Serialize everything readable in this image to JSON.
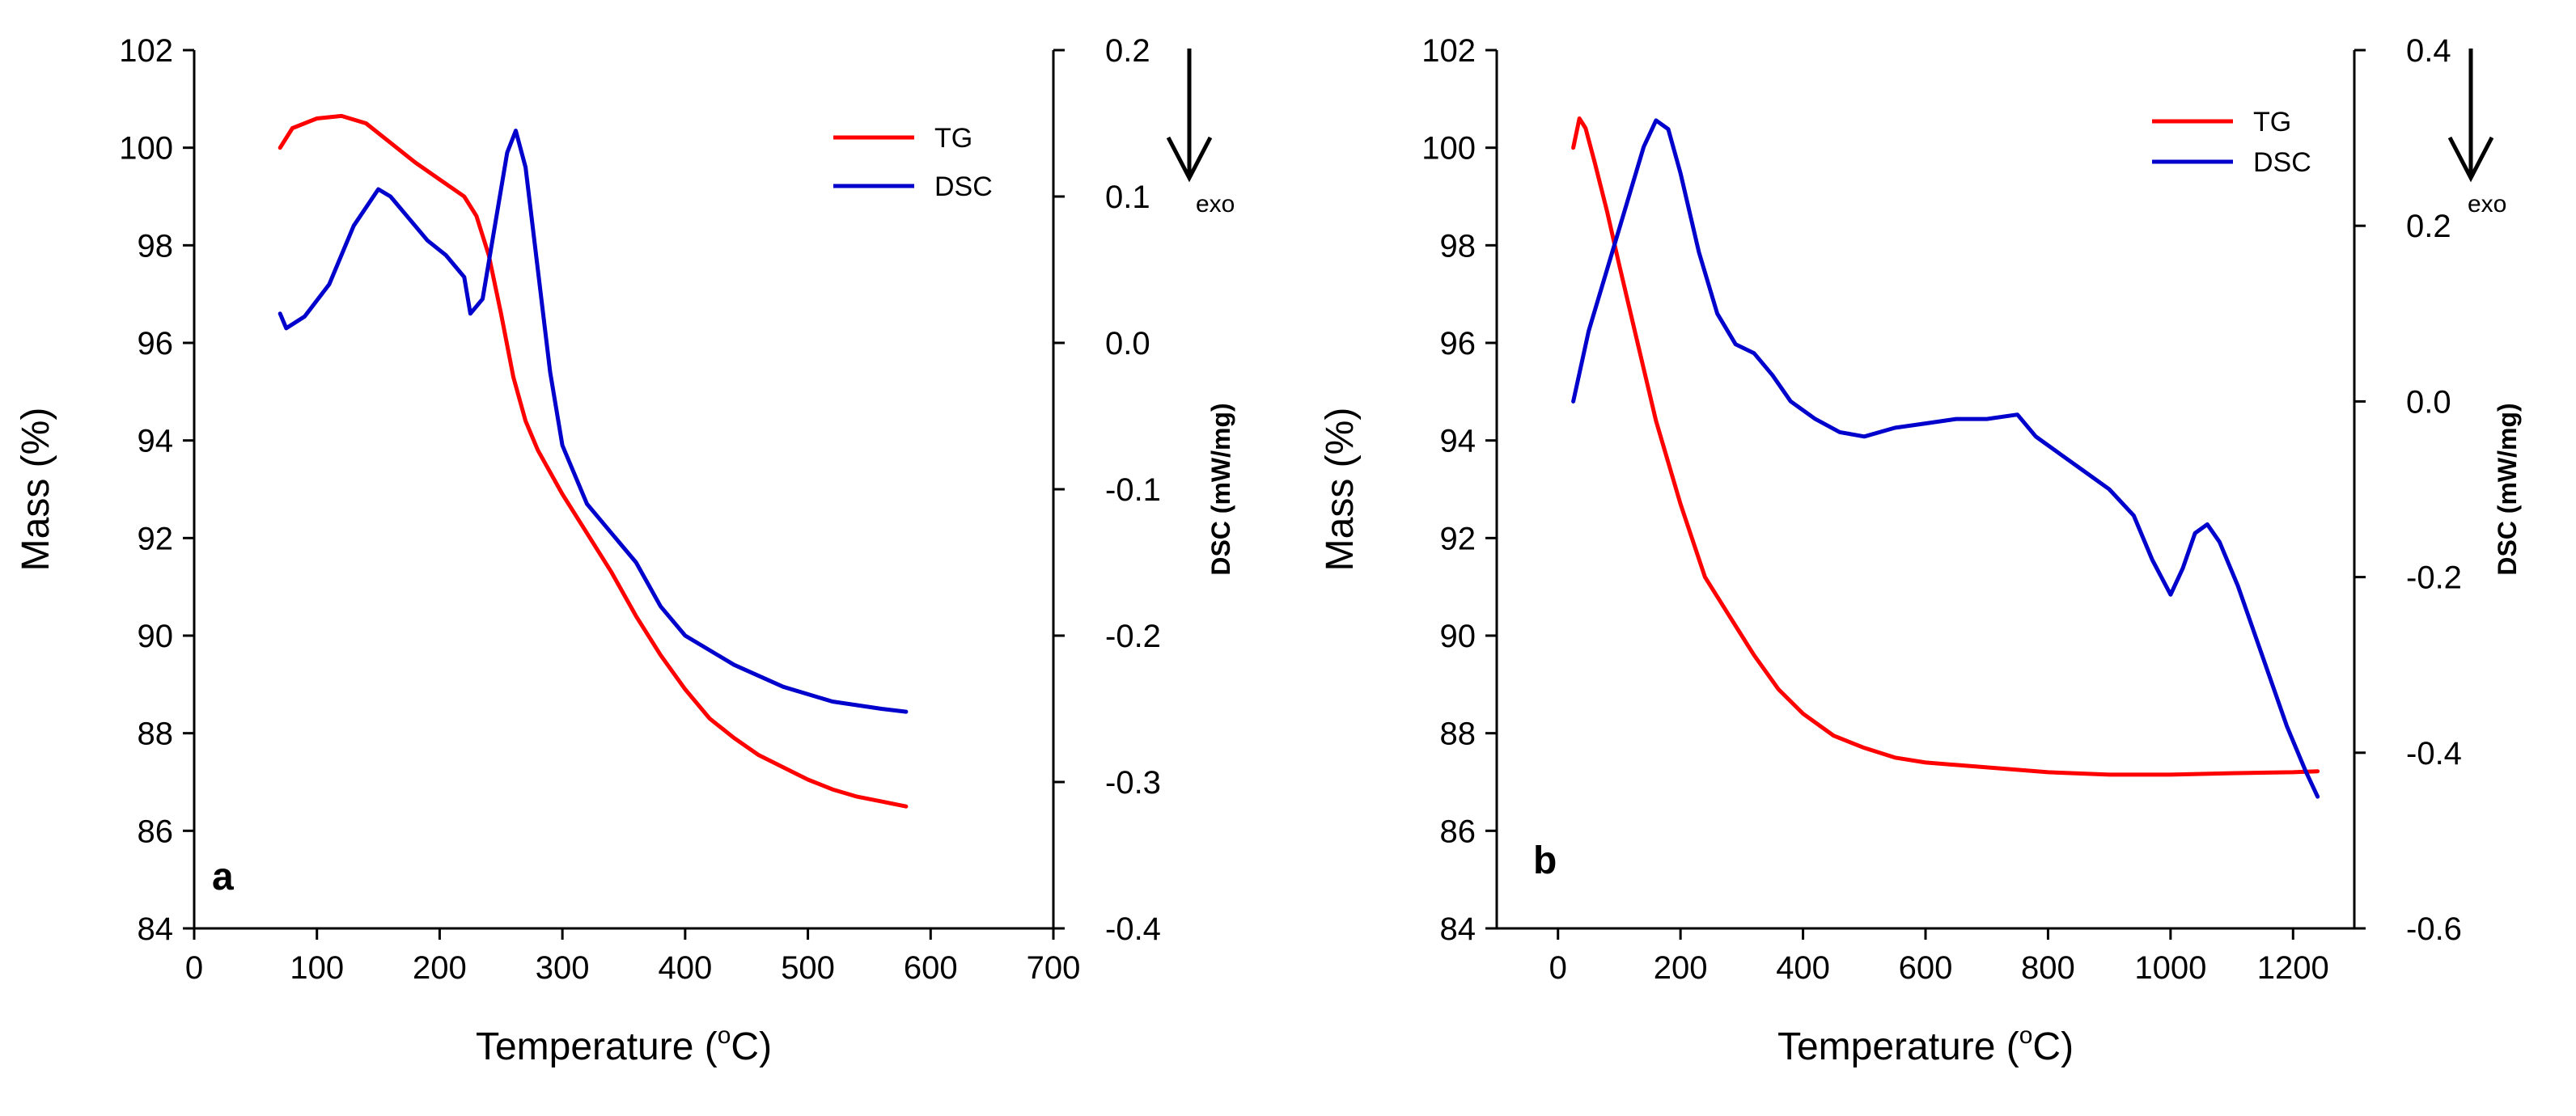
{
  "chart_data": [
    {
      "type": "line",
      "panel_label": "a",
      "xlabel_prefix": "Temperature (",
      "xlabel_sup": "o",
      "xlabel_suffix": "C)",
      "ylabel": "Mass (%)",
      "y2label": "DSC (mW/mg)",
      "exo_label": "exo",
      "xlim": [
        0,
        700
      ],
      "ylim": [
        84,
        102
      ],
      "y2lim": [
        -0.4,
        0.2
      ],
      "x_ticks": [
        0,
        100,
        200,
        300,
        400,
        500,
        600,
        700
      ],
      "x_tick_labels": [
        "0",
        "100",
        "200",
        "300",
        "400",
        "500",
        "600",
        "700"
      ],
      "y_ticks": [
        84,
        86,
        88,
        90,
        92,
        94,
        96,
        98,
        100,
        102
      ],
      "y_tick_labels": [
        "84",
        "86",
        "88",
        "90",
        "92",
        "94",
        "96",
        "98",
        "100",
        "102"
      ],
      "y2_ticks": [
        -0.4,
        -0.3,
        -0.2,
        -0.1,
        0.0,
        0.1,
        0.2
      ],
      "y2_tick_labels": [
        "-0.4",
        "-0.3",
        "-0.2",
        "-0.1",
        "0.0",
        "0.1",
        "0.2"
      ],
      "legend_position": "top-right",
      "series": [
        {
          "name": "TG",
          "color": "#ff0000",
          "axis": "left",
          "x": [
            70,
            80,
            100,
            120,
            140,
            160,
            180,
            200,
            220,
            230,
            240,
            250,
            260,
            270,
            280,
            300,
            320,
            340,
            360,
            380,
            400,
            420,
            440,
            460,
            480,
            500,
            520,
            540,
            560,
            580
          ],
          "y": [
            100.0,
            100.4,
            100.6,
            100.65,
            100.5,
            100.1,
            99.7,
            99.35,
            99.0,
            98.6,
            97.8,
            96.6,
            95.3,
            94.4,
            93.8,
            92.9,
            92.1,
            91.3,
            90.4,
            89.6,
            88.9,
            88.3,
            87.9,
            87.55,
            87.3,
            87.05,
            86.85,
            86.7,
            86.6,
            86.5
          ]
        },
        {
          "name": "DSC",
          "color": "#0000cc",
          "axis": "right",
          "x": [
            70,
            75,
            90,
            110,
            130,
            150,
            160,
            175,
            190,
            205,
            220,
            225,
            235,
            245,
            255,
            262,
            270,
            280,
            290,
            300,
            320,
            340,
            360,
            380,
            400,
            440,
            480,
            520,
            560,
            580
          ],
          "y": [
            0.02,
            0.01,
            0.018,
            0.04,
            0.08,
            0.105,
            0.1,
            0.085,
            0.07,
            0.06,
            0.045,
            0.02,
            0.03,
            0.08,
            0.13,
            0.145,
            0.12,
            0.05,
            -0.02,
            -0.07,
            -0.11,
            -0.13,
            -0.15,
            -0.18,
            -0.2,
            -0.22,
            -0.235,
            -0.245,
            -0.25,
            -0.252
          ]
        }
      ]
    },
    {
      "type": "line",
      "panel_label": "b",
      "xlabel_prefix": "Temperature (",
      "xlabel_sup": "o",
      "xlabel_suffix": "C)",
      "ylabel": "Mass (%)",
      "y2label": "DSC (mW/mg)",
      "exo_label": "exo",
      "xlim": [
        -100,
        1300
      ],
      "ylim": [
        84,
        102
      ],
      "y2lim": [
        -0.6,
        0.4
      ],
      "x_ticks": [
        0,
        200,
        400,
        600,
        800,
        1000,
        1200
      ],
      "x_tick_labels": [
        "0",
        "200",
        "400",
        "600",
        "800",
        "1000",
        "1200"
      ],
      "y_ticks": [
        84,
        86,
        88,
        90,
        92,
        94,
        96,
        98,
        100,
        102
      ],
      "y_tick_labels": [
        "84",
        "86",
        "88",
        "90",
        "92",
        "94",
        "96",
        "98",
        "100",
        "102"
      ],
      "y2_ticks": [
        -0.6,
        -0.4,
        -0.2,
        0.0,
        0.2,
        0.4
      ],
      "y2_tick_labels": [
        "-0.6",
        "-0.4",
        "-0.2",
        "0.0",
        "0.2",
        "0.4"
      ],
      "legend_position": "top-right",
      "series": [
        {
          "name": "TG",
          "color": "#ff0000",
          "axis": "left",
          "x": [
            25,
            35,
            45,
            60,
            80,
            100,
            130,
            160,
            200,
            240,
            280,
            320,
            360,
            400,
            450,
            500,
            550,
            600,
            650,
            700,
            750,
            800,
            900,
            1000,
            1100,
            1200,
            1240
          ],
          "y": [
            100.0,
            100.6,
            100.4,
            99.7,
            98.7,
            97.6,
            96.0,
            94.4,
            92.7,
            91.2,
            90.4,
            89.6,
            88.9,
            88.4,
            87.95,
            87.7,
            87.5,
            87.4,
            87.35,
            87.3,
            87.25,
            87.2,
            87.15,
            87.15,
            87.18,
            87.2,
            87.22
          ]
        },
        {
          "name": "DSC",
          "color": "#0000cc",
          "axis": "right",
          "x": [
            25,
            50,
            80,
            110,
            140,
            160,
            180,
            200,
            230,
            260,
            290,
            320,
            350,
            380,
            420,
            460,
            500,
            550,
            600,
            650,
            700,
            750,
            780,
            820,
            860,
            900,
            940,
            970,
            1000,
            1020,
            1040,
            1060,
            1080,
            1110,
            1150,
            1190,
            1220,
            1240
          ],
          "y": [
            0.0,
            0.08,
            0.15,
            0.22,
            0.29,
            0.32,
            0.31,
            0.26,
            0.17,
            0.1,
            0.065,
            0.055,
            0.03,
            0.0,
            -0.02,
            -0.035,
            -0.04,
            -0.03,
            -0.025,
            -0.02,
            -0.02,
            -0.015,
            -0.04,
            -0.06,
            -0.08,
            -0.1,
            -0.13,
            -0.18,
            -0.22,
            -0.19,
            -0.15,
            -0.14,
            -0.16,
            -0.21,
            -0.29,
            -0.37,
            -0.42,
            -0.45
          ]
        }
      ]
    }
  ]
}
